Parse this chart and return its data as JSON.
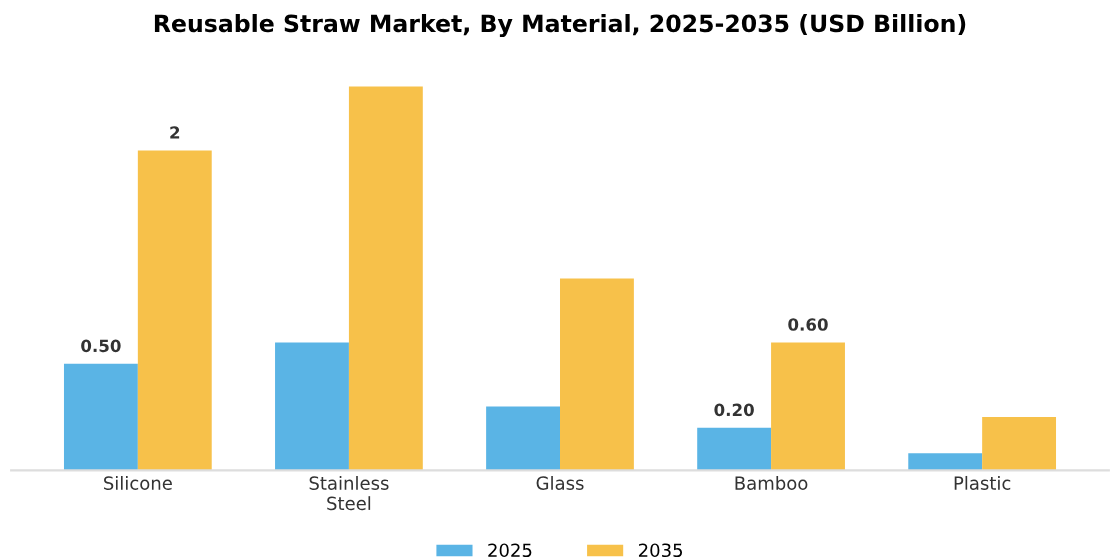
{
  "chart_data": {
    "type": "bar",
    "title": "Reusable Straw Market, By Material, 2025-2035 (USD Billion)",
    "categories": [
      "Silicone",
      "Stainless\nSteel",
      "Glass",
      "Bamboo",
      "Plastic"
    ],
    "series": [
      {
        "name": "2025",
        "color": "#5ab4e5",
        "values": [
          0.5,
          0.6,
          0.3,
          0.2,
          0.08
        ],
        "value_labels": [
          "0.50",
          null,
          null,
          "0.20",
          null
        ]
      },
      {
        "name": "2035",
        "color": "#f7c14a",
        "values": [
          1.5,
          1.8,
          0.9,
          0.6,
          0.25
        ],
        "value_labels": [
          "2",
          null,
          null,
          "0.60",
          null
        ]
      }
    ],
    "legend": "bottom",
    "grid": false
  }
}
